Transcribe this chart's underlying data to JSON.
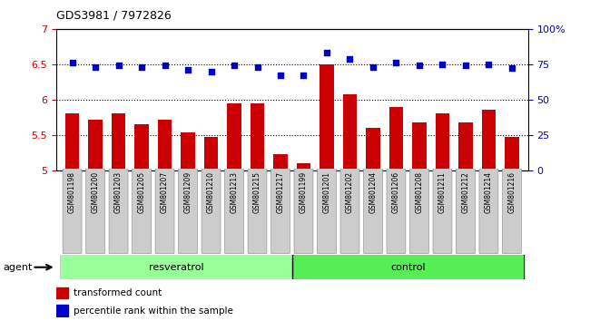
{
  "title": "GDS3981 / 7972826",
  "samples": [
    "GSM801198",
    "GSM801200",
    "GSM801203",
    "GSM801205",
    "GSM801207",
    "GSM801209",
    "GSM801210",
    "GSM801213",
    "GSM801215",
    "GSM801217",
    "GSM801199",
    "GSM801201",
    "GSM801202",
    "GSM801204",
    "GSM801206",
    "GSM801208",
    "GSM801211",
    "GSM801212",
    "GSM801214",
    "GSM801216"
  ],
  "transformed_count": [
    5.8,
    5.72,
    5.8,
    5.65,
    5.71,
    5.54,
    5.47,
    5.95,
    5.94,
    5.22,
    5.1,
    6.5,
    6.08,
    5.6,
    5.9,
    5.68,
    5.8,
    5.68,
    5.85,
    5.47
  ],
  "percentile_rank": [
    76,
    73,
    74,
    73,
    74,
    71,
    70,
    74,
    73,
    67,
    67,
    83,
    79,
    73,
    76,
    74,
    75,
    74,
    75,
    72
  ],
  "resveratrol_count": 10,
  "control_count": 10,
  "ylim_left": [
    5.0,
    7.0
  ],
  "ylim_right": [
    0,
    100
  ],
  "yticks_left": [
    5.0,
    5.5,
    6.0,
    6.5,
    7.0
  ],
  "yticks_right": [
    0,
    25,
    50,
    75,
    100
  ],
  "bar_color": "#cc0000",
  "dot_color": "#0000cc",
  "resveratrol_color": "#99ff99",
  "control_color": "#55ee55",
  "group_label_resveratrol": "resveratrol",
  "group_label_control": "control",
  "agent_label": "agent",
  "legend_bar": "transformed count",
  "legend_dot": "percentile rank within the sample",
  "gray_box_color": "#cccccc",
  "tick_color_left": "#cc0000",
  "tick_color_right": "#0000cc"
}
